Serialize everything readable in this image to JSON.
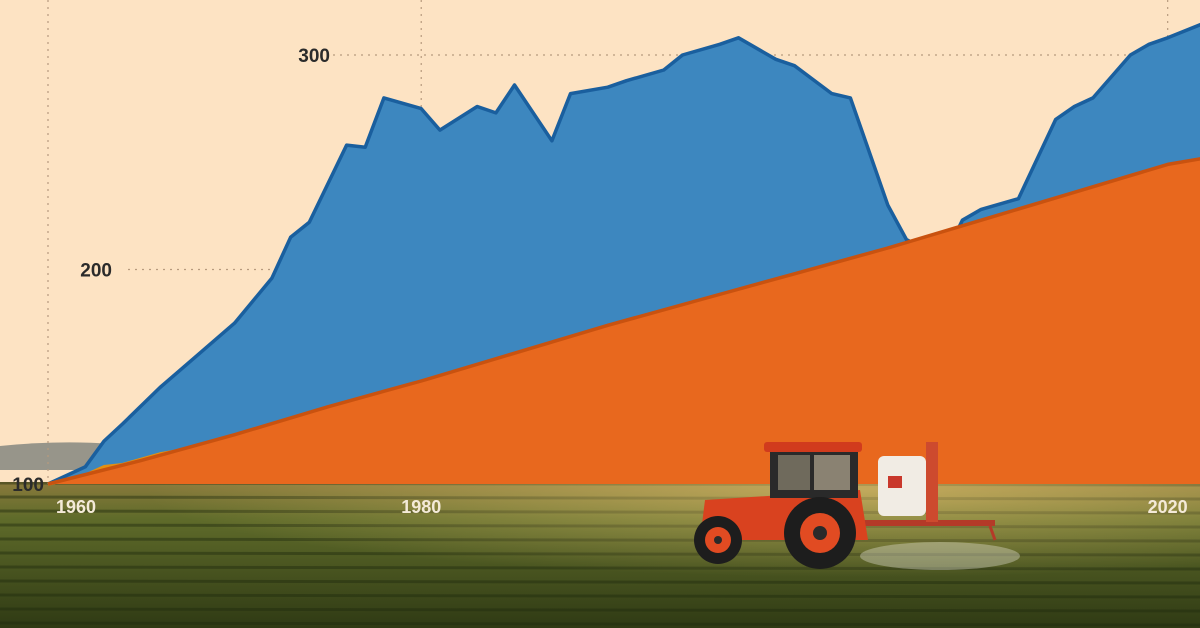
{
  "chart_data": {
    "type": "area",
    "title": "",
    "xlabel": "",
    "ylabel": "",
    "xlim": [
      1960,
      2022
    ],
    "ylim": [
      100,
      300
    ],
    "y_ticks": [
      {
        "value": 100,
        "label": "100"
      },
      {
        "value": 200,
        "label": "200"
      },
      {
        "value": 300,
        "label": "300"
      }
    ],
    "x_ticks": [
      {
        "value": 1960,
        "label": "1960"
      },
      {
        "value": 1980,
        "label": "1980"
      },
      {
        "value": 2020,
        "label": "2020"
      }
    ],
    "grid": true,
    "series": [
      {
        "color": "#e8681e",
        "x": [
          1960,
          1965,
          1970,
          1975,
          1980,
          1985,
          1990,
          1995,
          2000,
          2005,
          2010,
          2015,
          2020,
          2022
        ],
        "values": [
          100,
          111,
          123,
          136,
          148,
          161,
          174,
          186,
          198,
          210,
          223,
          236,
          249,
          252
        ]
      },
      {
        "color": "#f5a623",
        "x": [
          1960,
          1962,
          1963,
          1964,
          1966,
          1968,
          1970,
          1972,
          1973,
          1974,
          1976,
          1977,
          1978,
          1980,
          1981,
          1983,
          1984,
          1985,
          1987,
          1988,
          1990,
          1991,
          1993,
          1994,
          1996,
          1997,
          1999,
          2000,
          2002,
          2003,
          2005,
          2006,
          2008,
          2009,
          2010,
          2012,
          2014,
          2015,
          2016,
          2018,
          2019,
          2020,
          2022
        ],
        "values": [
          100,
          104,
          108,
          109,
          114,
          117,
          118,
          122,
          124,
          123,
          130,
          128,
          133,
          140,
          138,
          137,
          145,
          152,
          150,
          158,
          160,
          162,
          164,
          162,
          170,
          173,
          175,
          178,
          182,
          186,
          195,
          198,
          203,
          205,
          205,
          208,
          218,
          225,
          226,
          231,
          235,
          238,
          248
        ]
      },
      {
        "color": "#3d87bf",
        "x": [
          1960,
          1962,
          1963,
          1964,
          1966,
          1968,
          1970,
          1972,
          1973,
          1974,
          1976,
          1977,
          1978,
          1980,
          1981,
          1983,
          1984,
          1985,
          1987,
          1988,
          1990,
          1991,
          1993,
          1994,
          1996,
          1997,
          1999,
          2000,
          2002,
          2003,
          2005,
          2006,
          2008,
          2009,
          2010,
          2012,
          2014,
          2015,
          2016,
          2018,
          2019,
          2020,
          2022
        ],
        "values": [
          100,
          108,
          120,
          128,
          145,
          160,
          175,
          196,
          215,
          222,
          258,
          257,
          280,
          275,
          265,
          276,
          273,
          286,
          260,
          282,
          285,
          288,
          293,
          300,
          305,
          308,
          298,
          295,
          282,
          280,
          230,
          214,
          205,
          223,
          228,
          233,
          270,
          276,
          280,
          300,
          305,
          308,
          315
        ]
      }
    ]
  }
}
